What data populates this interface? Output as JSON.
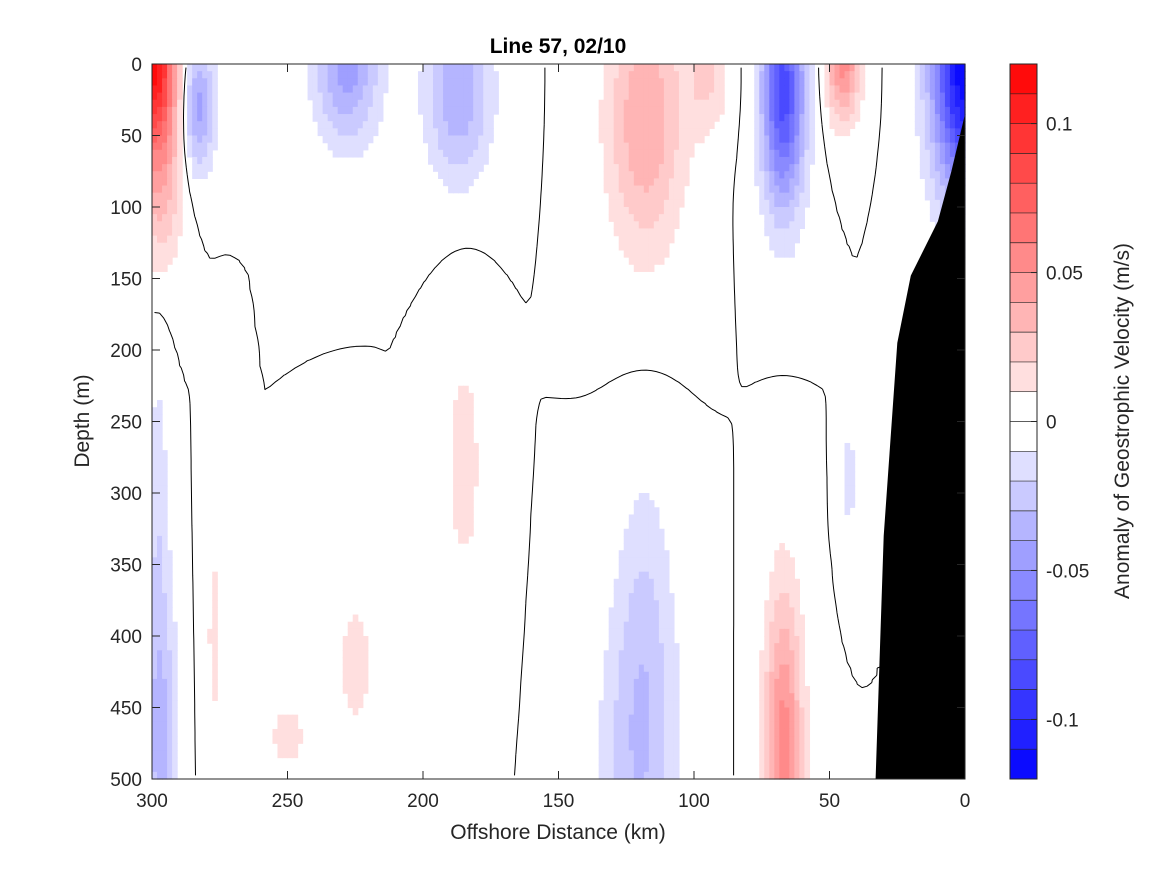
{
  "chart_data": {
    "type": "heatmap",
    "title": "Line 57, 02/10",
    "xlabel": "Offshore Distance (km)",
    "ylabel": "Depth (m)",
    "colorbar_label": "Anomaly of Geostrophic Velocity (m/s)",
    "xlim": [
      300,
      0
    ],
    "ylim": [
      0,
      500
    ],
    "x_reversed": true,
    "y_reversed": true,
    "x_ticks": [
      300,
      250,
      200,
      150,
      100,
      50,
      0
    ],
    "x_tick_labels": [
      "300",
      "250",
      "200",
      "150",
      "100",
      "50",
      "0"
    ],
    "y_ticks": [
      0,
      50,
      100,
      150,
      200,
      250,
      300,
      350,
      400,
      450,
      500
    ],
    "y_tick_labels": [
      "0",
      "50",
      "100",
      "150",
      "200",
      "250",
      "300",
      "350",
      "400",
      "450",
      "500"
    ],
    "colorbar_range": [
      -0.12,
      0.12
    ],
    "colorbar_ticks": [
      0.1,
      0.05,
      0,
      -0.05,
      -0.1
    ],
    "colorbar_tick_labels": [
      "0.1",
      "0.05",
      "0",
      "-0.05",
      "-0.1"
    ],
    "colorbar_levels": 24,
    "colormap": {
      "negative": "#0000ff",
      "zero": "#ffffff",
      "positive": "#ff0000"
    },
    "zero_contour": true,
    "grid": false,
    "bathymetry_color": "#000000",
    "bathymetry": [
      {
        "x": 33,
        "depth": 500
      },
      {
        "x": 30,
        "depth": 330
      },
      {
        "x": 25,
        "depth": 195
      },
      {
        "x": 20,
        "depth": 148
      },
      {
        "x": 10,
        "depth": 110
      },
      {
        "x": 5,
        "depth": 75
      },
      {
        "x": 0,
        "depth": 35
      }
    ],
    "features": [
      {
        "x": 300,
        "depth": 0,
        "sx": 9,
        "sz": 55,
        "value": 0.11
      },
      {
        "x": 297,
        "depth": 80,
        "sx": 8,
        "sz": 60,
        "value": 0.035
      },
      {
        "x": 283,
        "depth": 30,
        "sx": 6,
        "sz": 45,
        "value": -0.045
      },
      {
        "x": 297,
        "depth": 470,
        "sx": 6,
        "sz": 110,
        "value": -0.035
      },
      {
        "x": 298,
        "depth": 300,
        "sx": 4,
        "sz": 100,
        "value": -0.015
      },
      {
        "x": 277,
        "depth": 400,
        "sx": 4,
        "sz": 110,
        "value": 0.012
      },
      {
        "x": 250,
        "depth": 470,
        "sx": 11,
        "sz": 40,
        "value": 0.012
      },
      {
        "x": 225,
        "depth": 420,
        "sx": 9,
        "sz": 65,
        "value": 0.013
      },
      {
        "x": 228,
        "depth": 0,
        "sx": 12,
        "sz": 55,
        "value": -0.045
      },
      {
        "x": 187,
        "depth": 20,
        "sx": 12,
        "sz": 60,
        "value": -0.04
      },
      {
        "x": 185,
        "depth": 280,
        "sx": 8,
        "sz": 100,
        "value": 0.014
      },
      {
        "x": 118,
        "depth": 40,
        "sx": 14,
        "sz": 90,
        "value": 0.04
      },
      {
        "x": 120,
        "depth": 480,
        "sx": 14,
        "sz": 110,
        "value": -0.03
      },
      {
        "x": 118,
        "depth": 360,
        "sx": 10,
        "sz": 90,
        "value": -0.012
      },
      {
        "x": 95,
        "depth": 10,
        "sx": 8,
        "sz": 40,
        "value": 0.02
      },
      {
        "x": 67,
        "depth": 20,
        "sx": 8,
        "sz": 80,
        "value": -0.085
      },
      {
        "x": 67,
        "depth": 480,
        "sx": 7,
        "sz": 110,
        "value": 0.055
      },
      {
        "x": 45,
        "depth": 0,
        "sx": 6,
        "sz": 40,
        "value": 0.055
      },
      {
        "x": 43,
        "depth": 290,
        "sx": 3,
        "sz": 40,
        "value": -0.015
      },
      {
        "x": 0,
        "depth": 0,
        "sx": 12,
        "sz": 90,
        "value": -0.12
      }
    ]
  }
}
